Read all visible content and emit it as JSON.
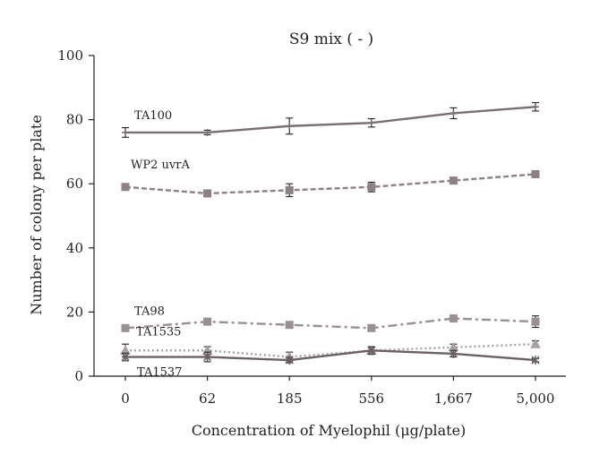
{
  "chart_data": {
    "type": "line",
    "title": "S9 mix ( - )",
    "xlabel": "Concentration of Myelophil (μg/plate)",
    "ylabel": "Number of colony per plate",
    "categories": [
      "0",
      "62",
      "185",
      "556",
      "1,667",
      "5,000"
    ],
    "ylim": [
      0,
      100
    ],
    "yticks": [
      0,
      20,
      40,
      60,
      80,
      100
    ],
    "grid": false,
    "legend": "inline labels",
    "series": [
      {
        "name": "TA100",
        "values": [
          76,
          76,
          78,
          79,
          82,
          84
        ],
        "errors": [
          1.5,
          0.7,
          2.5,
          1.3,
          1.7,
          1.3
        ],
        "marker": "cross",
        "line_style": "solid",
        "color": "#7a6e72"
      },
      {
        "name": "WP2 uvrA",
        "values": [
          59,
          57,
          58,
          59,
          61,
          63
        ],
        "errors": [
          1.0,
          0.6,
          2.0,
          1.5,
          0.5,
          0.5
        ],
        "marker": "square",
        "line_style": "dashed",
        "color": "#8c8185"
      },
      {
        "name": "TA98",
        "values": [
          15,
          17,
          16,
          15,
          18,
          17
        ],
        "errors": [
          0.8,
          0.8,
          0.8,
          0.8,
          0.8,
          1.8
        ],
        "marker": "square",
        "line_style": "dashdot",
        "color": "#9a8f93"
      },
      {
        "name": "TA1535",
        "values": [
          8,
          8,
          6,
          8,
          9,
          10
        ],
        "errors": [
          2.0,
          1.2,
          1.5,
          1.0,
          1.0,
          1.0
        ],
        "marker": "triangle",
        "line_style": "dotted",
        "color": "#a9a0a3"
      },
      {
        "name": "TA1537",
        "values": [
          6,
          6,
          5,
          8,
          7,
          5
        ],
        "errors": [
          1.2,
          1.5,
          0.8,
          1.2,
          1.0,
          0.5
        ],
        "marker": "star",
        "line_style": "solid",
        "color": "#6b6064"
      }
    ]
  }
}
